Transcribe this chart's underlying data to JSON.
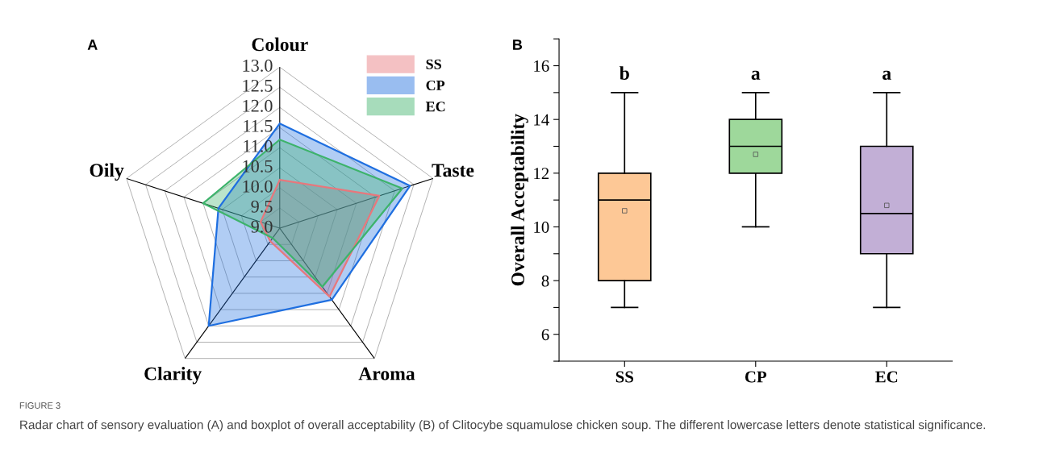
{
  "chart_data": [
    {
      "type": "radar",
      "title": "A",
      "categories": [
        "Colour",
        "Taste",
        "Aroma",
        "Clarity",
        "Oily"
      ],
      "series": [
        {
          "name": "SS",
          "color": "#e8777c",
          "values": [
            10.2,
            11.6,
            11.1,
            9.4,
            9.5
          ]
        },
        {
          "name": "CP",
          "color": "#1f6fe0",
          "values": [
            11.6,
            12.4,
            11.2,
            12.0,
            10.6
          ]
        },
        {
          "name": "EC",
          "color": "#3db36b",
          "values": [
            11.2,
            12.2,
            10.8,
            9.3,
            11.0
          ]
        }
      ],
      "ylim": [
        9.0,
        13.0
      ],
      "yticks": [
        {
          "value": 9,
          "label": "9.0"
        },
        9.5,
        {
          "value": 10,
          "label": "10.0"
        },
        10.5,
        {
          "value": 11,
          "label": "11.0"
        },
        11.5,
        {
          "value": 12,
          "label": "12.0"
        },
        12.5,
        {
          "value": 13,
          "label": "13.0"
        }
      ],
      "grid": true,
      "legend": "top right"
    },
    {
      "type": "box",
      "title": "B",
      "ylabel": "Overall Acceptability",
      "categories": [
        "SS",
        "CP",
        "EC"
      ],
      "boxes": [
        {
          "low": 7,
          "q1": 8,
          "median": 11,
          "q3": 12,
          "high": 15,
          "mean": 10.6
        },
        {
          "low": 10,
          "q1": 12,
          "median": 13,
          "q3": 14,
          "high": 15,
          "mean": 12.7
        },
        {
          "low": 7,
          "q1": 9,
          "median": 10.5,
          "q3": 13,
          "high": 15,
          "mean": 10.8
        }
      ],
      "colors": [
        "#fdc896",
        "#9ed89b",
        "#c2afd6"
      ],
      "ylim": [
        5,
        17
      ],
      "yticks": [
        {
          "value": 5,
          "label": null
        },
        6,
        {
          "value": 7,
          "label": null
        },
        8,
        {
          "value": 9,
          "label": null
        },
        10,
        {
          "value": 11,
          "label": null
        },
        12,
        {
          "value": 13,
          "label": null
        },
        14,
        {
          "value": 15,
          "label": null
        },
        16,
        {
          "value": 17,
          "label": null
        }
      ],
      "grid": false,
      "annotations": [
        "b",
        "a",
        "a",
        "FIGURE 3",
        "Radar chart of sensory evaluation (A) and boxplot of overall acceptability (B) of Clitocybe squamulose chicken soup. The different lowercase letters denote statistical significance."
      ]
    }
  ]
}
